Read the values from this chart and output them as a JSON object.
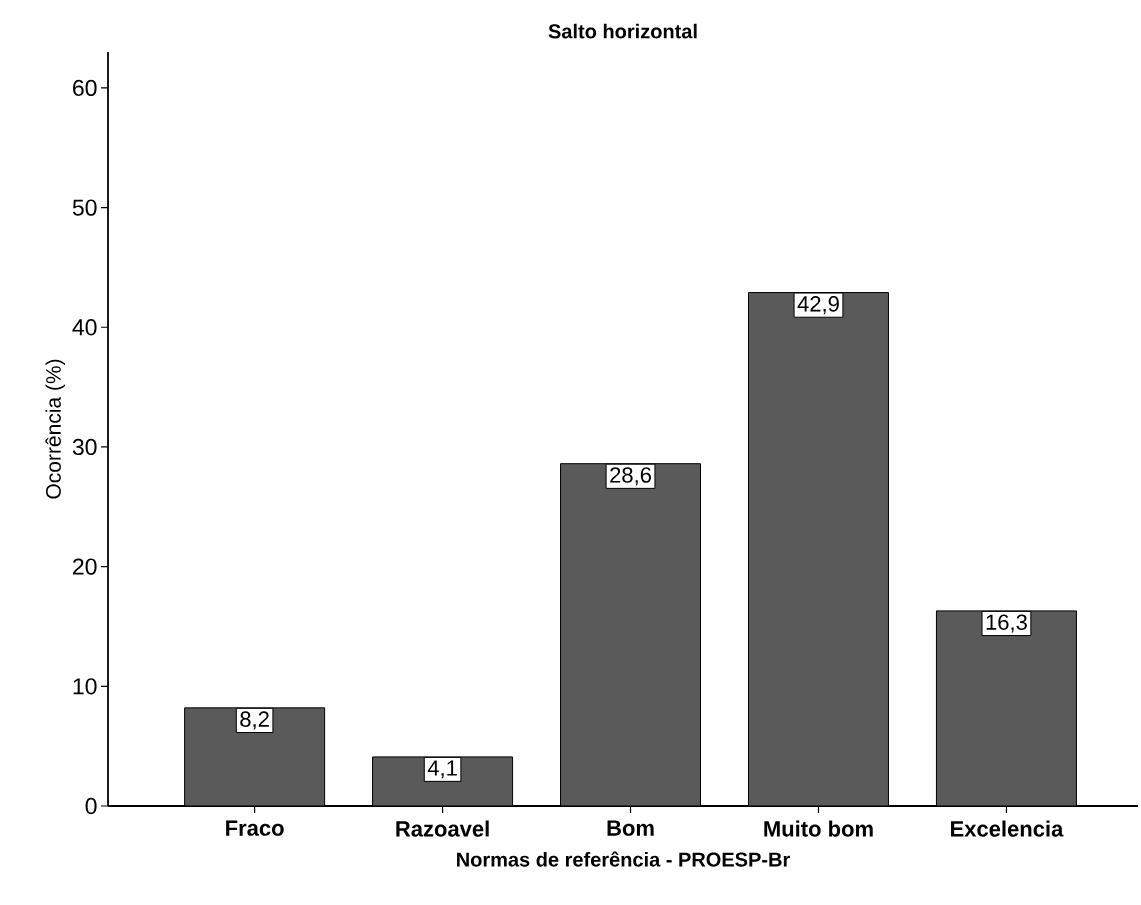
{
  "chart_data": {
    "type": "bar",
    "title": "Salto horizontal",
    "xlabel": "Normas de referência - PROESP-Br",
    "ylabel": "Ocorrência (%)",
    "categories": [
      "Fraco",
      "Razoavel",
      "Bom",
      "Muito bom",
      "Excelencia"
    ],
    "values": [
      8.2,
      4.1,
      28.6,
      42.9,
      16.3
    ],
    "value_labels": [
      "8,2",
      "4,1",
      "28,6",
      "42,9",
      "16,3"
    ],
    "color": "#5a5a5a",
    "ylim": [
      0,
      63
    ],
    "yticks": [
      0,
      10,
      20,
      30,
      40,
      50,
      60
    ],
    "grid": false
  }
}
